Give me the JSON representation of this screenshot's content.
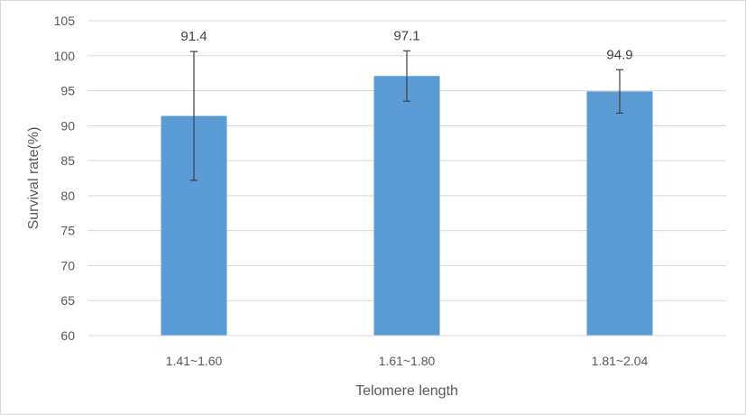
{
  "chart_data": {
    "type": "bar",
    "title": "",
    "xlabel": "Telomere length",
    "ylabel": "Survival rate(%)",
    "categories": [
      "1.41~1.60",
      "1.61~1.80",
      "1.81~2.04"
    ],
    "values": [
      91.4,
      97.1,
      94.9
    ],
    "error_low": [
      82.2,
      93.5,
      91.8
    ],
    "error_high": [
      100.6,
      100.7,
      98.0
    ],
    "data_labels": [
      "91.4",
      "97.1",
      "94.9"
    ],
    "ylim": [
      60,
      105
    ],
    "yticks": [
      60,
      65,
      70,
      75,
      80,
      85,
      90,
      95,
      100,
      105
    ],
    "ytick_labels": [
      "60",
      "65",
      "70",
      "75",
      "80",
      "85",
      "90",
      "95",
      "100",
      "105"
    ],
    "grid": true,
    "legend": "none",
    "colors": {
      "bar": "#5b9bd5",
      "gridline": "#d9d9d9",
      "error_bar": "#404040",
      "text": "#595959"
    }
  }
}
